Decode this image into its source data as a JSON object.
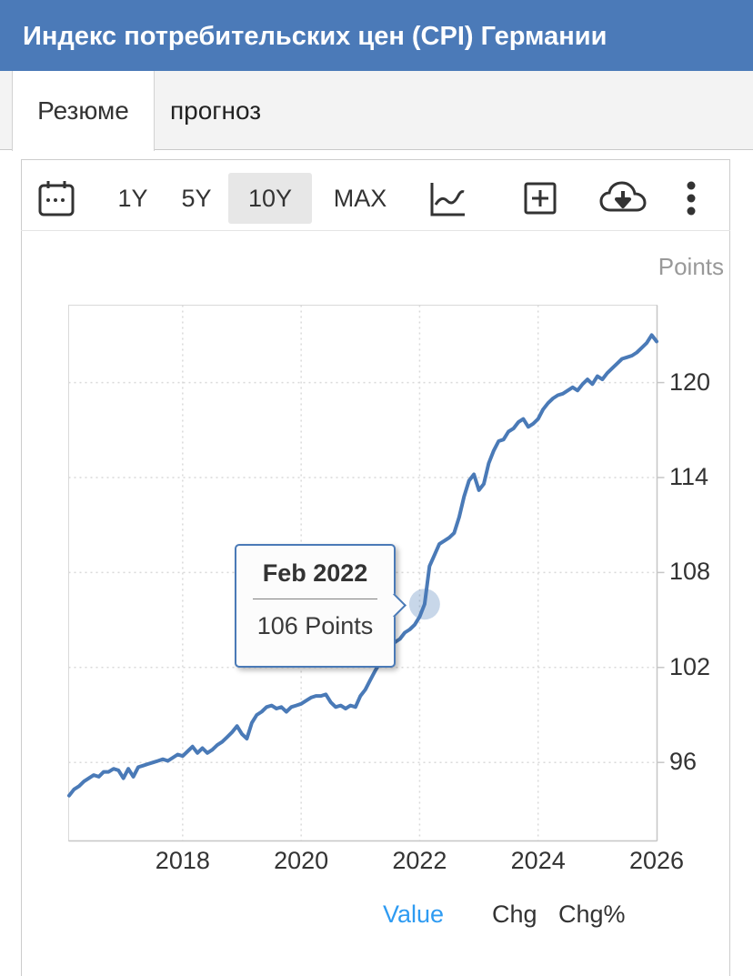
{
  "header": {
    "title": "Индекс потребительских цен (CPI) Германии"
  },
  "tabs": [
    {
      "label": "Резюме",
      "active": true
    },
    {
      "label": "прогноз",
      "active": false
    }
  ],
  "toolbar": {
    "icons": [
      "calendar-icon",
      "line-chart-icon",
      "compare-plus-icon",
      "cloud-download-icon",
      "kebab-menu-icon"
    ],
    "range_buttons": [
      "1Y",
      "5Y",
      "10Y",
      "MAX"
    ],
    "selected_range": "10Y"
  },
  "chart": {
    "unit_label": "Points",
    "tooltip": {
      "title": "Feb 2022",
      "value": "106 Points"
    }
  },
  "footer": {
    "links": [
      {
        "label": "Value",
        "active": true
      },
      {
        "label": "Chg",
        "active": false
      },
      {
        "label": "Chg%",
        "active": false
      }
    ]
  },
  "colors": {
    "header_bg": "#4b7ab8",
    "line": "#4a7ab7",
    "halo": "rgba(74,122,183,0.3)",
    "grid": "#d9d9d9",
    "axis": "#c6c6c6",
    "active_link": "#2e9bf2"
  },
  "chart_data": {
    "type": "line",
    "title": "Индекс потребительских цен (CPI) Германии",
    "ylabel": "Points",
    "x_start": "2016-02",
    "x_end": "2026-01",
    "x_tick_labels": [
      2018,
      2020,
      2022,
      2024,
      2026
    ],
    "y_ticks": [
      96,
      102,
      108,
      114,
      120
    ],
    "ylim": [
      91.2,
      124.9
    ],
    "grid": "dotted",
    "legend": "none",
    "series": [
      {
        "name": "Germany CPI",
        "frequency": "monthly",
        "values": [
          93.9,
          94.3,
          94.5,
          94.8,
          95.0,
          95.2,
          95.1,
          95.4,
          95.4,
          95.6,
          95.5,
          95.0,
          95.6,
          95.1,
          95.7,
          95.8,
          95.9,
          96.0,
          96.1,
          96.2,
          96.1,
          96.3,
          96.5,
          96.4,
          96.7,
          97.0,
          96.6,
          96.9,
          96.6,
          96.8,
          97.1,
          97.3,
          97.6,
          97.9,
          98.3,
          97.8,
          97.5,
          98.5,
          99.0,
          99.2,
          99.5,
          99.6,
          99.4,
          99.5,
          99.2,
          99.5,
          99.6,
          99.7,
          99.9,
          100.1,
          100.2,
          100.2,
          100.3,
          99.8,
          99.5,
          99.6,
          99.4,
          99.6,
          99.5,
          100.2,
          100.6,
          101.2,
          101.8,
          102.3,
          102.8,
          103.3,
          103.6,
          103.8,
          104.2,
          104.4,
          104.7,
          105.2,
          106.0,
          108.4,
          109.1,
          109.8,
          110.0,
          110.2,
          110.5,
          111.5,
          112.8,
          113.8,
          114.2,
          113.2,
          113.6,
          114.9,
          115.7,
          116.3,
          116.4,
          116.9,
          117.1,
          117.5,
          117.7,
          117.2,
          117.4,
          117.7,
          118.3,
          118.7,
          119.0,
          119.2,
          119.3,
          119.5,
          119.7,
          119.5,
          119.9,
          120.2,
          119.9,
          120.4,
          120.2,
          120.6,
          120.9,
          121.2,
          121.5,
          121.6,
          121.7,
          121.9,
          122.2,
          122.5,
          123.0,
          122.6
        ]
      }
    ],
    "highlight": {
      "month_index": 72,
      "date": "Feb 2022",
      "value": 106
    }
  }
}
